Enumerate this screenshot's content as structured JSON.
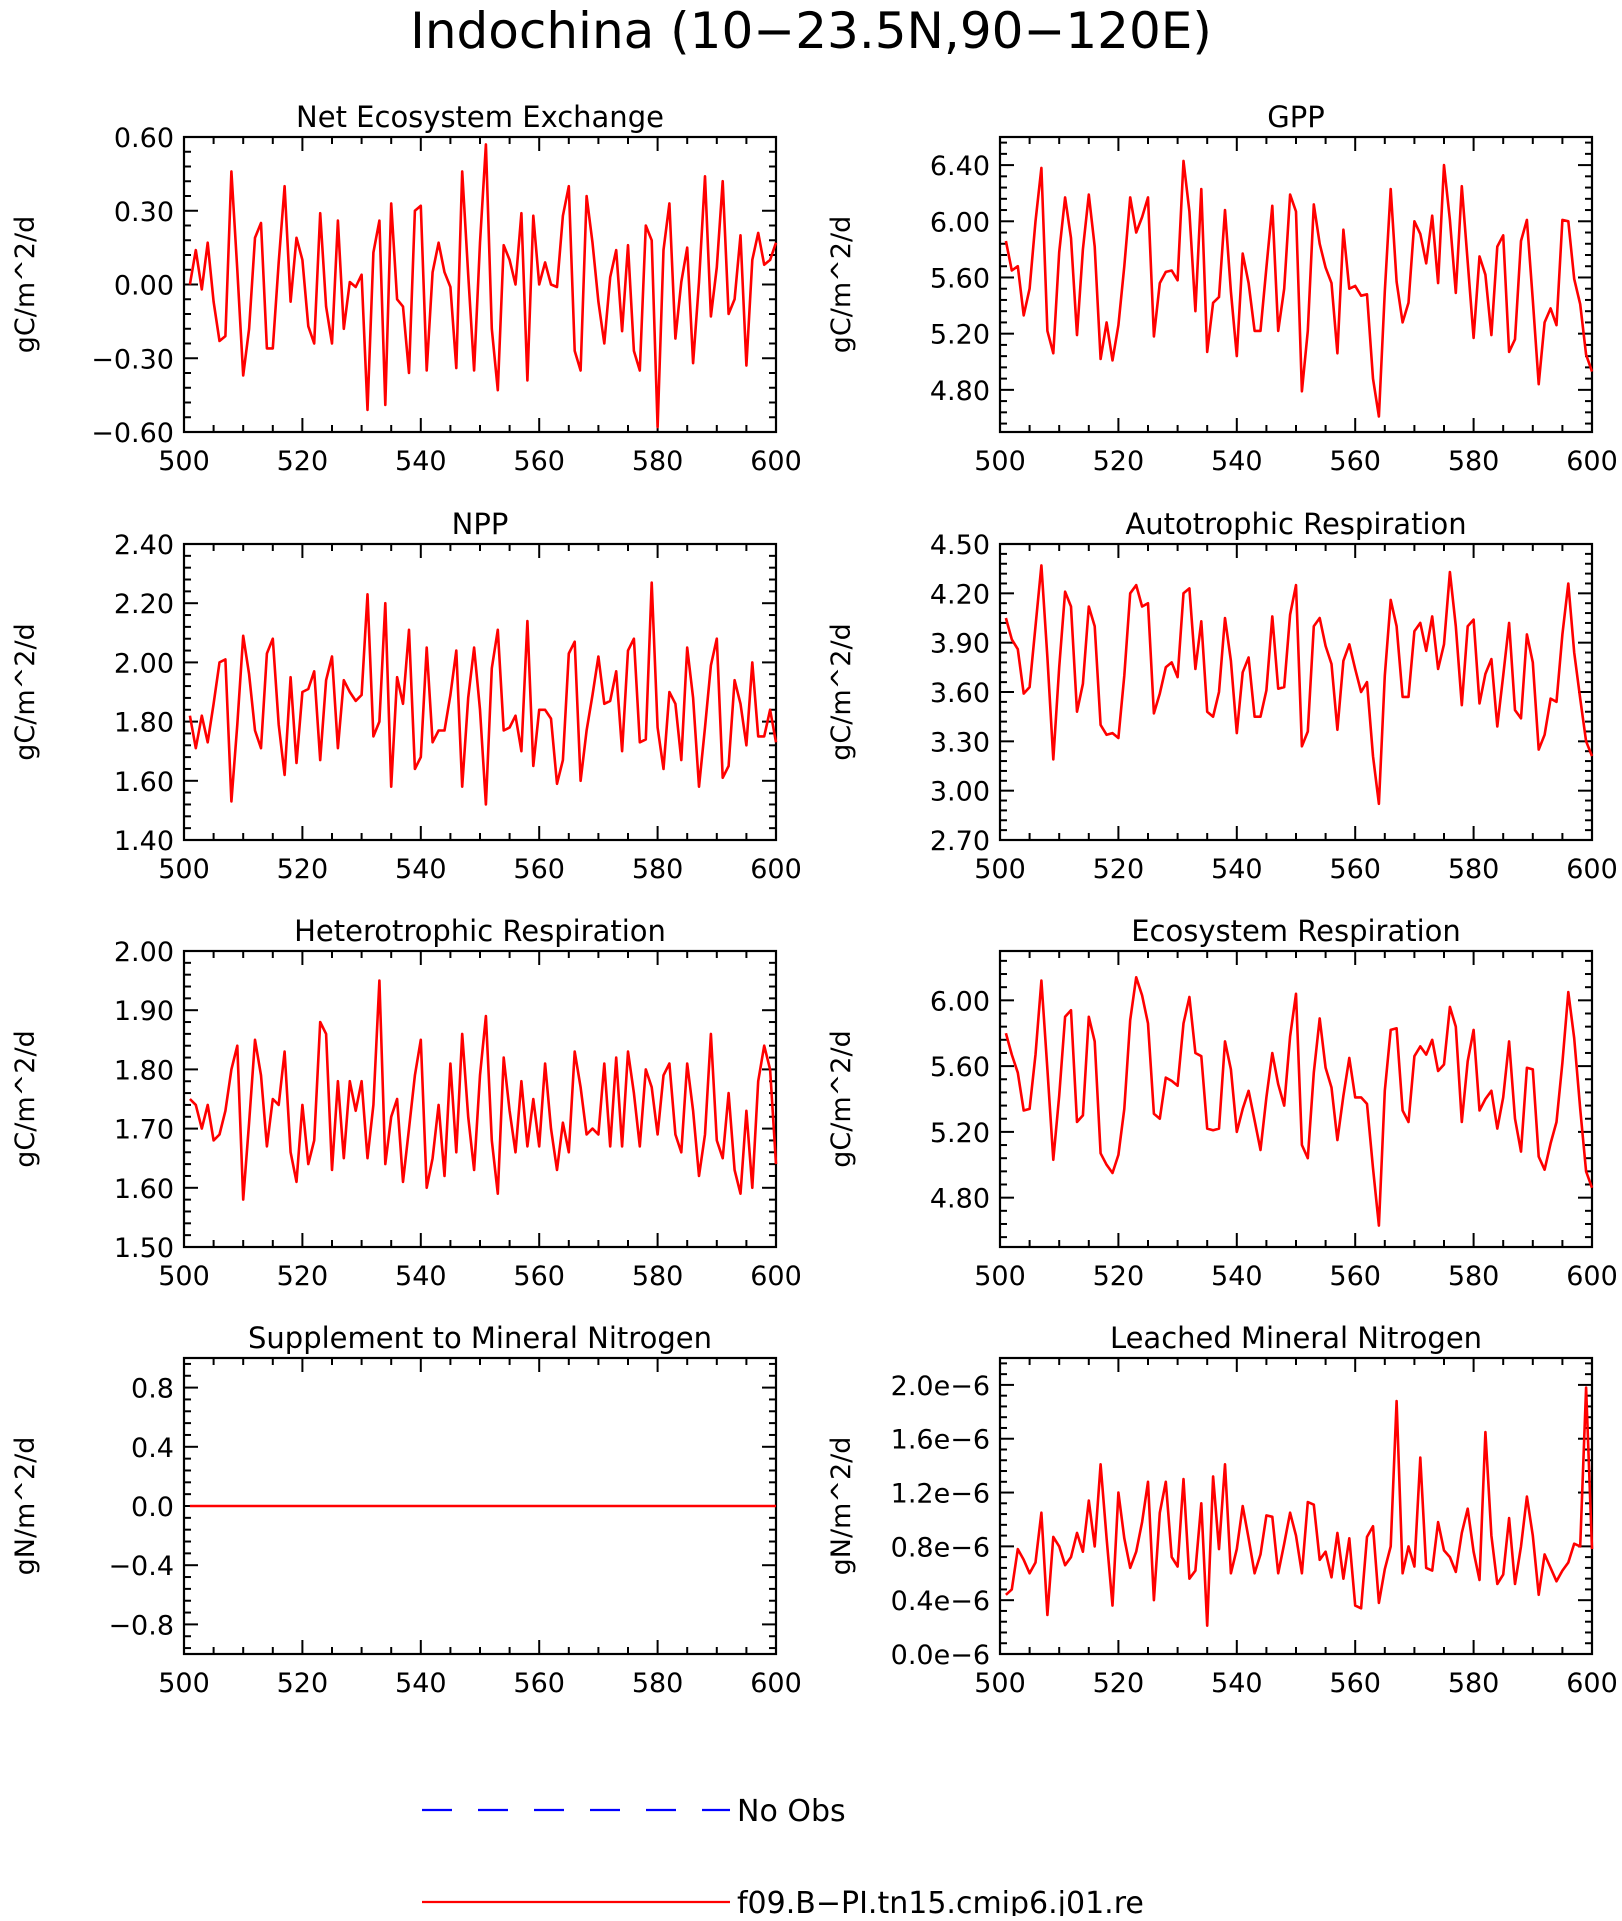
{
  "title": "Indochina (10-23.5N,90-120E)",
  "legend": [
    {
      "label": "No Obs",
      "color": "#0000ff",
      "dash": true
    },
    {
      "label": "f09.B-PI.tn15.cmip6.j01.re",
      "color": "#ff0000",
      "dash": false
    }
  ],
  "chart_data": [
    {
      "type": "line",
      "title": "Net Ecosystem Exchange",
      "ylabel": "gC/m^2/d",
      "xlim": [
        500,
        600
      ],
      "xticks": [
        500,
        520,
        540,
        560,
        580,
        600
      ],
      "ylim": [
        -0.6,
        0.6
      ],
      "yticks": [
        -0.6,
        -0.3,
        0.0,
        0.3,
        0.6
      ],
      "ytick_labels": [
        "-0.60",
        "-0.30",
        "0.00",
        "0.30",
        "0.60"
      ],
      "series": [
        {
          "color": "#ff0000",
          "x_start": 501,
          "values": [
            0.0,
            0.14,
            -0.02,
            0.17,
            -0.07,
            -0.23,
            -0.21,
            0.46,
            0.06,
            -0.37,
            -0.18,
            0.19,
            0.25,
            -0.26,
            -0.26,
            0.09,
            0.4,
            -0.07,
            0.19,
            0.1,
            -0.17,
            -0.24,
            0.29,
            -0.09,
            -0.24,
            0.26,
            -0.18,
            0.01,
            -0.01,
            0.04,
            -0.51,
            0.13,
            0.26,
            -0.49,
            0.33,
            -0.06,
            -0.09,
            -0.36,
            0.3,
            0.32,
            -0.35,
            0.05,
            0.17,
            0.05,
            -0.01,
            -0.34,
            0.46,
            0.04,
            -0.35,
            0.17,
            0.57,
            -0.18,
            -0.43,
            0.16,
            0.1,
            0.0,
            0.29,
            -0.39,
            0.28,
            0.0,
            0.09,
            0.0,
            -0.01,
            0.28,
            0.4,
            -0.27,
            -0.35,
            0.36,
            0.17,
            -0.07,
            -0.24,
            0.03,
            0.14,
            -0.19,
            0.16,
            -0.27,
            -0.35,
            0.24,
            0.18,
            -0.58,
            0.14,
            0.33,
            -0.22,
            0.01,
            0.15,
            -0.32,
            0.01,
            0.44,
            -0.13,
            0.07,
            0.42,
            -0.12,
            -0.06,
            0.2,
            -0.33,
            0.1,
            0.21,
            0.08,
            0.1,
            0.17
          ]
        }
      ]
    },
    {
      "type": "line",
      "title": "GPP",
      "ylabel": "gC/m^2/d",
      "xlim": [
        500,
        600
      ],
      "xticks": [
        500,
        520,
        540,
        560,
        580,
        600
      ],
      "ylim": [
        4.5,
        6.6
      ],
      "yticks": [
        4.8,
        5.2,
        5.6,
        6.0,
        6.4
      ],
      "ytick_labels": [
        "4.80",
        "5.20",
        "5.60",
        "6.00",
        "6.40"
      ],
      "series": [
        {
          "color": "#ff0000",
          "x_start": 501,
          "values": [
            5.86,
            5.65,
            5.68,
            5.33,
            5.52,
            6.0,
            6.38,
            5.22,
            5.06,
            5.78,
            6.17,
            5.88,
            5.19,
            5.8,
            6.19,
            5.82,
            5.02,
            5.28,
            5.01,
            5.26,
            5.68,
            6.17,
            5.92,
            6.03,
            6.17,
            5.18,
            5.56,
            5.64,
            5.65,
            5.58,
            6.43,
            6.07,
            5.36,
            6.23,
            5.07,
            5.42,
            5.46,
            6.08,
            5.5,
            5.04,
            5.77,
            5.56,
            5.22,
            5.22,
            5.67,
            6.11,
            5.22,
            5.52,
            6.19,
            6.07,
            4.79,
            5.22,
            6.12,
            5.84,
            5.67,
            5.56,
            5.06,
            5.94,
            5.52,
            5.54,
            5.47,
            5.48,
            4.88,
            4.61,
            5.5,
            6.23,
            5.57,
            5.28,
            5.42,
            6.0,
            5.91,
            5.7,
            6.04,
            5.56,
            6.4,
            6.01,
            5.49,
            6.25,
            5.71,
            5.17,
            5.75,
            5.62,
            5.19,
            5.82,
            5.9,
            5.07,
            5.16,
            5.86,
            6.01,
            5.44,
            4.84,
            5.28,
            5.38,
            5.26,
            6.01,
            6.0,
            5.59,
            5.41,
            5.05,
            4.93
          ]
        }
      ]
    },
    {
      "type": "line",
      "title": "NPP",
      "ylabel": "gC/m^2/d",
      "xlim": [
        500,
        600
      ],
      "xticks": [
        500,
        520,
        540,
        560,
        580,
        600
      ],
      "ylim": [
        1.4,
        2.4
      ],
      "yticks": [
        1.4,
        1.6,
        1.8,
        2.0,
        2.2,
        2.4
      ],
      "ytick_labels": [
        "1.40",
        "1.60",
        "1.80",
        "2.00",
        "2.20",
        "2.40"
      ],
      "series": [
        {
          "color": "#ff0000",
          "x_start": 501,
          "values": [
            1.82,
            1.71,
            1.82,
            1.73,
            1.86,
            2.0,
            2.01,
            1.53,
            1.79,
            2.09,
            1.96,
            1.77,
            1.71,
            2.03,
            2.08,
            1.79,
            1.62,
            1.95,
            1.66,
            1.9,
            1.91,
            1.97,
            1.67,
            1.94,
            2.02,
            1.71,
            1.94,
            1.9,
            1.87,
            1.89,
            2.23,
            1.75,
            1.8,
            2.2,
            1.58,
            1.95,
            1.86,
            2.11,
            1.64,
            1.68,
            2.05,
            1.73,
            1.77,
            1.77,
            1.89,
            2.04,
            1.58,
            1.88,
            2.05,
            1.84,
            1.52,
            1.98,
            2.11,
            1.77,
            1.78,
            1.82,
            1.7,
            2.14,
            1.65,
            1.84,
            1.84,
            1.81,
            1.59,
            1.67,
            2.03,
            2.07,
            1.6,
            1.77,
            1.89,
            2.02,
            1.86,
            1.87,
            1.97,
            1.7,
            2.04,
            2.08,
            1.73,
            1.74,
            2.27,
            1.78,
            1.64,
            1.9,
            1.86,
            1.67,
            2.05,
            1.88,
            1.58,
            1.78,
            1.99,
            2.08,
            1.61,
            1.65,
            1.94,
            1.86,
            1.72,
            2.0,
            1.75,
            1.75,
            1.84,
            1.73
          ]
        }
      ]
    },
    {
      "type": "line",
      "title": "Autotrophic Respiration",
      "ylabel": "gC/m^2/d",
      "xlim": [
        500,
        600
      ],
      "xticks": [
        500,
        520,
        540,
        560,
        580,
        600
      ],
      "ylim": [
        2.7,
        4.5
      ],
      "yticks": [
        2.7,
        3.0,
        3.3,
        3.6,
        3.9,
        4.2,
        4.5
      ],
      "ytick_labels": [
        "2.70",
        "3.00",
        "3.30",
        "3.60",
        "3.90",
        "4.20",
        "4.50"
      ],
      "series": [
        {
          "color": "#ff0000",
          "x_start": 501,
          "values": [
            4.05,
            3.92,
            3.86,
            3.59,
            3.63,
            4.0,
            4.37,
            3.81,
            3.19,
            3.75,
            4.21,
            4.12,
            3.48,
            3.65,
            4.12,
            4.0,
            3.4,
            3.34,
            3.35,
            3.32,
            3.7,
            4.2,
            4.25,
            4.12,
            4.14,
            3.47,
            3.59,
            3.75,
            3.78,
            3.69,
            4.2,
            4.23,
            3.74,
            4.03,
            3.48,
            3.45,
            3.6,
            4.05,
            3.79,
            3.35,
            3.72,
            3.81,
            3.45,
            3.45,
            3.61,
            4.06,
            3.62,
            3.63,
            4.07,
            4.25,
            3.27,
            3.36,
            4.0,
            4.05,
            3.88,
            3.77,
            3.37,
            3.79,
            3.89,
            3.74,
            3.6,
            3.66,
            3.21,
            2.92,
            3.7,
            4.16,
            4.0,
            3.57,
            3.57,
            3.97,
            4.02,
            3.85,
            4.06,
            3.74,
            3.89,
            4.33,
            4.0,
            3.52,
            4.0,
            4.04,
            3.53,
            3.71,
            3.8,
            3.39,
            3.7,
            4.02,
            3.49,
            3.44,
            3.95,
            3.78,
            3.25,
            3.34,
            3.56,
            3.54,
            3.95,
            4.26,
            3.84,
            3.56,
            3.3,
            3.21
          ]
        }
      ]
    },
    {
      "type": "line",
      "title": "Heterotrophic Respiration",
      "ylabel": "gC/m^2/d",
      "xlim": [
        500,
        600
      ],
      "xticks": [
        500,
        520,
        540,
        560,
        580,
        600
      ],
      "ylim": [
        1.5,
        2.0
      ],
      "yticks": [
        1.5,
        1.6,
        1.7,
        1.8,
        1.9,
        2.0
      ],
      "ytick_labels": [
        "1.50",
        "1.60",
        "1.70",
        "1.80",
        "1.90",
        "2.00"
      ],
      "series": [
        {
          "color": "#ff0000",
          "x_start": 501,
          "values": [
            1.75,
            1.74,
            1.7,
            1.74,
            1.68,
            1.69,
            1.73,
            1.8,
            1.84,
            1.58,
            1.71,
            1.85,
            1.79,
            1.67,
            1.75,
            1.74,
            1.83,
            1.66,
            1.61,
            1.74,
            1.64,
            1.68,
            1.88,
            1.86,
            1.63,
            1.78,
            1.65,
            1.78,
            1.73,
            1.78,
            1.65,
            1.74,
            1.95,
            1.64,
            1.72,
            1.75,
            1.61,
            1.7,
            1.79,
            1.85,
            1.6,
            1.65,
            1.74,
            1.62,
            1.81,
            1.66,
            1.86,
            1.72,
            1.63,
            1.79,
            1.89,
            1.68,
            1.59,
            1.82,
            1.73,
            1.66,
            1.78,
            1.67,
            1.75,
            1.67,
            1.81,
            1.7,
            1.63,
            1.71,
            1.66,
            1.83,
            1.77,
            1.69,
            1.7,
            1.69,
            1.81,
            1.67,
            1.82,
            1.67,
            1.83,
            1.76,
            1.67,
            1.8,
            1.77,
            1.69,
            1.79,
            1.81,
            1.69,
            1.66,
            1.81,
            1.73,
            1.62,
            1.69,
            1.86,
            1.68,
            1.65,
            1.76,
            1.63,
            1.59,
            1.73,
            1.6,
            1.78,
            1.84,
            1.8,
            1.64
          ]
        }
      ]
    },
    {
      "type": "line",
      "title": "Ecosystem Respiration",
      "ylabel": "gC/m^2/d",
      "xlim": [
        500,
        600
      ],
      "xticks": [
        500,
        520,
        540,
        560,
        580,
        600
      ],
      "ylim": [
        4.5,
        6.3
      ],
      "yticks": [
        4.8,
        5.2,
        5.6,
        6.0
      ],
      "ytick_labels": [
        "4.80",
        "5.20",
        "5.60",
        "6.00"
      ],
      "series": [
        {
          "color": "#ff0000",
          "x_start": 501,
          "values": [
            5.8,
            5.67,
            5.56,
            5.33,
            5.34,
            5.67,
            6.12,
            5.58,
            5.03,
            5.42,
            5.9,
            5.94,
            5.26,
            5.3,
            5.9,
            5.75,
            5.07,
            5.0,
            4.95,
            5.06,
            5.34,
            5.88,
            6.14,
            6.03,
            5.86,
            5.31,
            5.28,
            5.53,
            5.51,
            5.48,
            5.86,
            6.02,
            5.68,
            5.66,
            5.22,
            5.21,
            5.22,
            5.75,
            5.58,
            5.2,
            5.34,
            5.45,
            5.27,
            5.09,
            5.41,
            5.68,
            5.49,
            5.36,
            5.78,
            6.04,
            5.12,
            5.04,
            5.56,
            5.89,
            5.59,
            5.47,
            5.15,
            5.42,
            5.65,
            5.41,
            5.41,
            5.37,
            4.98,
            4.63,
            5.45,
            5.82,
            5.83,
            5.33,
            5.26,
            5.66,
            5.72,
            5.67,
            5.76,
            5.57,
            5.61,
            5.96,
            5.84,
            5.26,
            5.63,
            5.82,
            5.33,
            5.4,
            5.45,
            5.22,
            5.41,
            5.75,
            5.28,
            5.08,
            5.59,
            5.58,
            5.05,
            4.97,
            5.13,
            5.26,
            5.62,
            6.05,
            5.77,
            5.34,
            4.96,
            4.86
          ]
        }
      ]
    },
    {
      "type": "line",
      "title": "Supplement to Mineral Nitrogen",
      "ylabel": "gN/m^2/d",
      "xlim": [
        500,
        600
      ],
      "xticks": [
        500,
        520,
        540,
        560,
        580,
        600
      ],
      "ylim": [
        -1.0,
        1.0
      ],
      "yticks": [
        -0.8,
        -0.4,
        0.0,
        0.4,
        0.8
      ],
      "ytick_labels": [
        "-0.8",
        "-0.4",
        "0.0",
        "0.4",
        "0.8"
      ],
      "series": [
        {
          "color": "#ff0000",
          "x_start": 501,
          "values": [
            0,
            0,
            0,
            0,
            0,
            0,
            0,
            0,
            0,
            0,
            0,
            0,
            0,
            0,
            0,
            0,
            0,
            0,
            0,
            0,
            0,
            0,
            0,
            0,
            0,
            0,
            0,
            0,
            0,
            0,
            0,
            0,
            0,
            0,
            0,
            0,
            0,
            0,
            0,
            0,
            0,
            0,
            0,
            0,
            0,
            0,
            0,
            0,
            0,
            0,
            0,
            0,
            0,
            0,
            0,
            0,
            0,
            0,
            0,
            0,
            0,
            0,
            0,
            0,
            0,
            0,
            0,
            0,
            0,
            0,
            0,
            0,
            0,
            0,
            0,
            0,
            0,
            0,
            0,
            0,
            0,
            0,
            0,
            0,
            0,
            0,
            0,
            0,
            0,
            0,
            0,
            0,
            0,
            0,
            0,
            0,
            0,
            0,
            0,
            0
          ]
        }
      ]
    },
    {
      "type": "line",
      "title": "Leached Mineral Nitrogen",
      "ylabel": "gN/m^2/d",
      "xlim": [
        500,
        600
      ],
      "xticks": [
        500,
        520,
        540,
        560,
        580,
        600
      ],
      "ylim": [
        0.0,
        2.2
      ],
      "yticks": [
        0.0,
        0.4,
        0.8,
        1.2,
        1.6,
        2.0
      ],
      "ytick_labels": [
        "0.0e-6",
        "0.4e-6",
        "0.8e-6",
        "1.2e-6",
        "1.6e-6",
        "2.0e-6"
      ],
      "y_unit_note": "values in units of 1e-6",
      "series": [
        {
          "color": "#ff0000",
          "x_start": 501,
          "values": [
            0.44,
            0.48,
            0.78,
            0.7,
            0.6,
            0.68,
            1.05,
            0.29,
            0.87,
            0.8,
            0.66,
            0.72,
            0.9,
            0.76,
            1.14,
            0.8,
            1.41,
            0.86,
            0.36,
            1.2,
            0.86,
            0.64,
            0.76,
            0.98,
            1.28,
            0.4,
            1.05,
            1.28,
            0.72,
            0.65,
            1.3,
            0.56,
            0.62,
            1.12,
            0.21,
            1.32,
            0.78,
            1.41,
            0.6,
            0.78,
            1.1,
            0.86,
            0.6,
            0.74,
            1.03,
            1.02,
            0.6,
            0.82,
            1.05,
            0.88,
            0.6,
            1.13,
            1.11,
            0.7,
            0.76,
            0.57,
            0.9,
            0.56,
            0.86,
            0.36,
            0.34,
            0.87,
            0.95,
            0.38,
            0.63,
            0.8,
            1.88,
            0.6,
            0.8,
            0.65,
            1.46,
            0.64,
            0.62,
            0.98,
            0.77,
            0.72,
            0.61,
            0.9,
            1.08,
            0.76,
            0.55,
            1.65,
            0.88,
            0.52,
            0.59,
            1.01,
            0.52,
            0.8,
            1.17,
            0.88,
            0.44,
            0.74,
            0.64,
            0.54,
            0.62,
            0.68,
            0.82,
            0.8,
            1.98,
            0.78
          ]
        }
      ]
    }
  ]
}
